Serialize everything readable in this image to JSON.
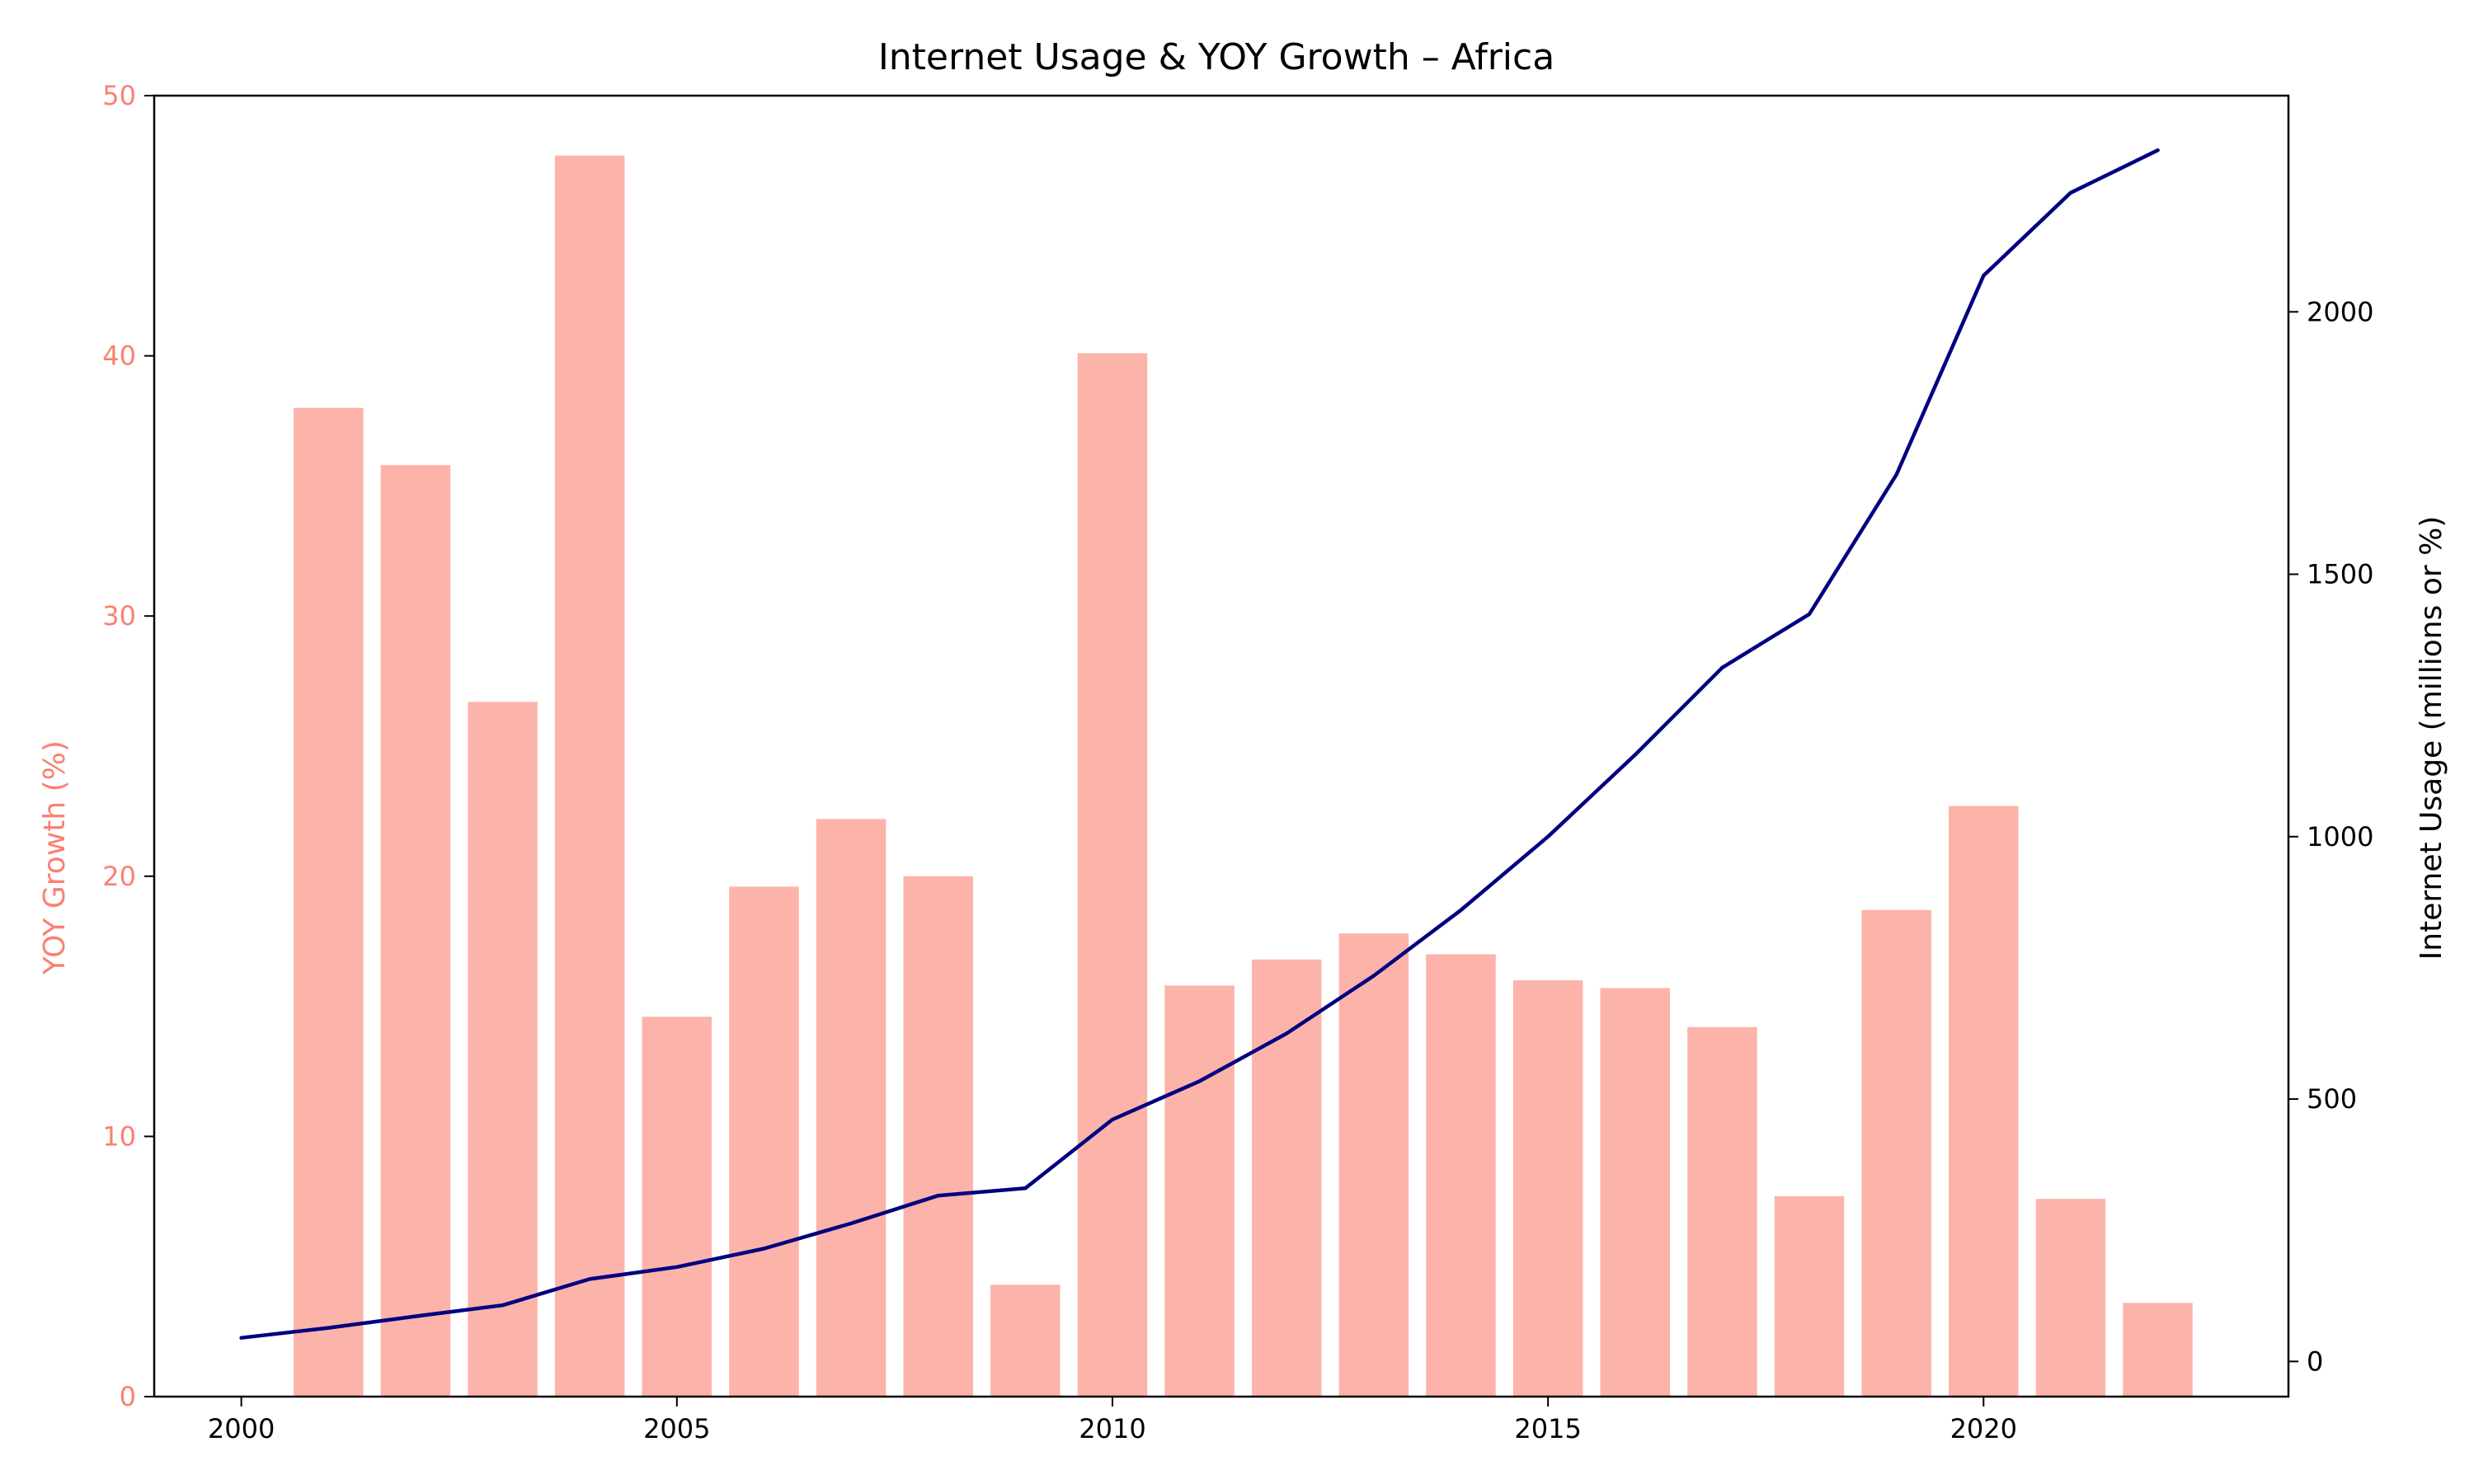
{
  "chart_data": {
    "type": "bar+line",
    "title": "Internet Usage & YOY Growth – Africa",
    "x": [
      2000,
      2001,
      2002,
      2003,
      2004,
      2005,
      2006,
      2007,
      2008,
      2009,
      2010,
      2011,
      2012,
      2013,
      2014,
      2015,
      2016,
      2017,
      2018,
      2019,
      2020,
      2021,
      2022
    ],
    "xlim": [
      1999,
      2023.5
    ],
    "xticks": [
      2000,
      2005,
      2010,
      2015,
      2020
    ],
    "bars": {
      "axis": "left",
      "color": "#fa8072",
      "values": [
        null,
        38.0,
        35.8,
        26.7,
        47.7,
        14.6,
        19.6,
        22.2,
        20.0,
        4.3,
        40.1,
        15.8,
        16.8,
        17.8,
        17.0,
        16.0,
        15.7,
        14.2,
        7.7,
        18.7,
        22.7,
        7.6,
        3.6
      ]
    },
    "line": {
      "axis": "right",
      "color": "#000080",
      "values": [
        45,
        64,
        86,
        107,
        157,
        180,
        215,
        263,
        316,
        330,
        461,
        534,
        625,
        735,
        860,
        1000,
        1156,
        1322,
        1424,
        1690,
        2069,
        2227,
        2308
      ]
    },
    "ylabel_left": "YOY Growth (%)",
    "ylabel_left_color": "#fa8072",
    "ylim_left": [
      0,
      50
    ],
    "yticks_left": [
      0,
      10,
      20,
      30,
      40,
      50
    ],
    "ylabel_right": "Internet Usage (millions or %)",
    "ylim_right": [
      -67,
      2412
    ],
    "yticks_right": [
      0,
      500,
      1000,
      1500,
      2000
    ],
    "grid": false,
    "legend": "none"
  }
}
